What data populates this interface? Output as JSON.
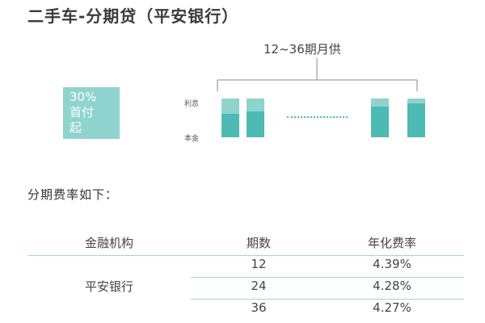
{
  "title": "二手车-分期贷（平安银行）",
  "diagram": {
    "monthly_label": "12~36期月供",
    "down_payment": [
      "30%",
      "首付",
      "起"
    ],
    "interest_label": "利息",
    "principal_label": "本金",
    "bars": [
      {
        "interest_share": 0.4
      },
      {
        "interest_share": 0.33
      },
      {
        "interest_share": 0.2
      },
      {
        "interest_share": 0.13
      }
    ],
    "colors": {
      "interest": "#8fd3ce",
      "principal": "#4dbab4"
    }
  },
  "rates_heading": "分期费率如下：",
  "table": {
    "headers": [
      "金融机构",
      "期数",
      "年化费率"
    ],
    "institution": "平安银行",
    "rows": [
      {
        "term": "12",
        "rate": "4.39%"
      },
      {
        "term": "24",
        "rate": "4.28%"
      },
      {
        "term": "36",
        "rate": "4.27%"
      }
    ]
  }
}
